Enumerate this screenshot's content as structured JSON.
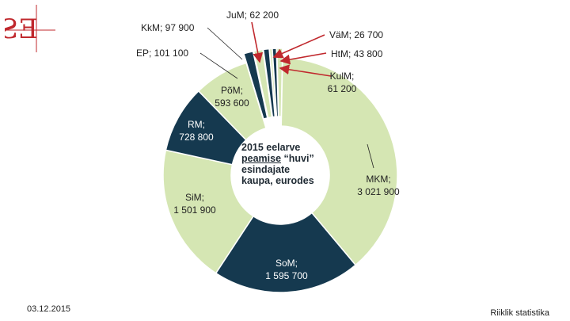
{
  "chart_data": {
    "type": "pie",
    "donut": true,
    "title_lines": [
      "2015 eelarve",
      "peamise",
      "“huvi”",
      "esindajate",
      "kaupa, eurodes"
    ],
    "title": "2015 eelarve peamise “huvi” esindajate kaupa, eurodes",
    "slices": [
      {
        "name": "MKM",
        "value": 3021900,
        "label": "MKM;\n3 021 900",
        "color": "#d5e6b3"
      },
      {
        "name": "SoM",
        "value": 1595700,
        "label": "SoM;\n1 595 700",
        "color": "#15394f"
      },
      {
        "name": "SiM",
        "value": 1501900,
        "label": "SiM;\n1 501 900",
        "color": "#d5e6b3"
      },
      {
        "name": "RM",
        "value": 728800,
        "label": "RM;\n728 800",
        "color": "#15394f"
      },
      {
        "name": "PõM",
        "value": 593600,
        "label": "PõM;\n593 600",
        "color": "#d5e6b3"
      },
      {
        "name": "EP",
        "value": 101100,
        "label": "EP; 101 100",
        "color": "#15394f"
      },
      {
        "name": "KkM",
        "value": 97900,
        "label": "KkM; 97 900",
        "color": "#d5e6b3"
      },
      {
        "name": "JuM",
        "value": 62200,
        "label": "JuM; 62 200",
        "color": "#15394f"
      },
      {
        "name": "VäM",
        "value": 26700,
        "label": "VäM; 26 700",
        "color": "#d5e6b3"
      },
      {
        "name": "HtM",
        "value": 43800,
        "label": "HtM; 43 800",
        "color": "#15394f"
      },
      {
        "name": "KulM",
        "value": 61200,
        "label": "KulM;\n61 200",
        "color": "#d5e6b3"
      }
    ]
  },
  "footer": {
    "date": "03.12.2015",
    "source": "Riiklik statistika"
  },
  "colors": {
    "light": "#d5e6b3",
    "dark": "#15394f",
    "accent": "#c0282d"
  }
}
